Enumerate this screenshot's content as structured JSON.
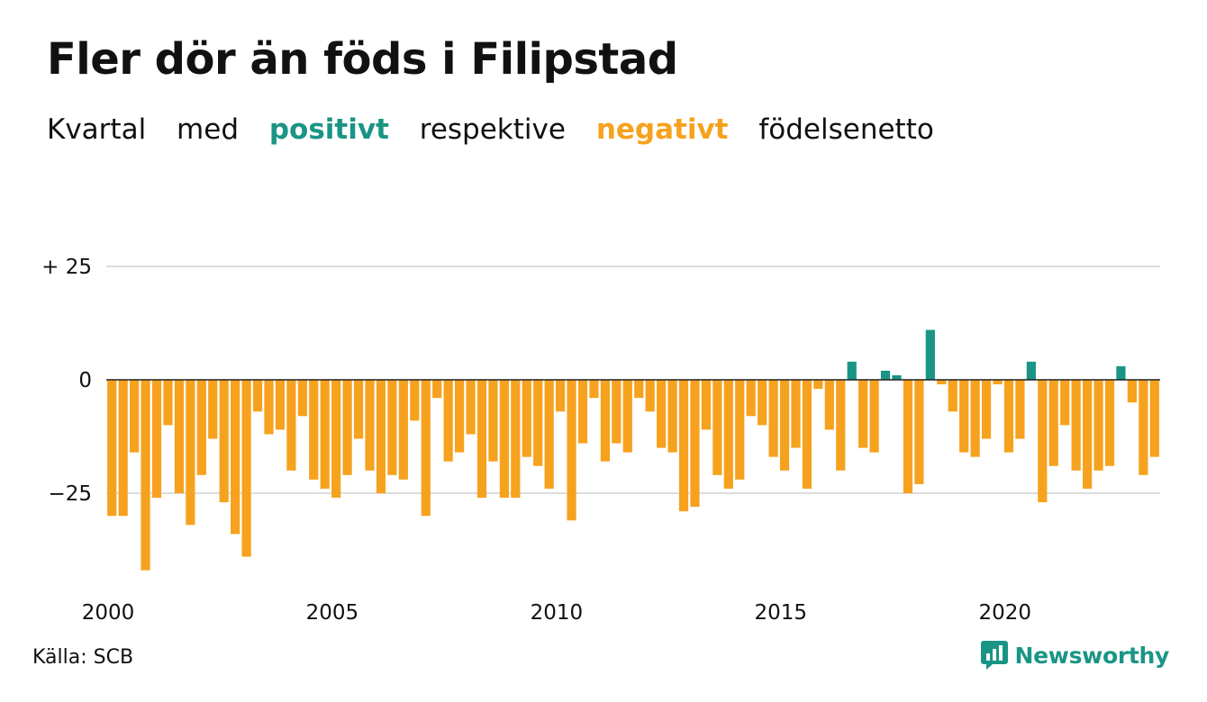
{
  "title": "Fler dör än föds i Filipstad",
  "subtitle": {
    "w1": "Kvartal",
    "w2": "med",
    "positive": "positivt",
    "w3": "respektive",
    "negative": "negativt",
    "w4": "födelsenetto"
  },
  "source": "Källa: SCB",
  "brand": {
    "name": "Newsworthy",
    "icon": "newsworthy-logo-icon"
  },
  "colors": {
    "positive": "#1a9585",
    "negative": "#f6a21e",
    "grid": "#dddddd",
    "zero": "#222222",
    "brand": "#1a9585"
  },
  "chart_data": {
    "type": "bar",
    "title": "Fler dör än föds i Filipstad",
    "xlabel": "",
    "ylabel": "",
    "ylim": [
      -45,
      27
    ],
    "yticks": [
      25,
      0,
      -25
    ],
    "ytick_labels": [
      "+ 25",
      "0",
      "−25"
    ],
    "xticks": [
      "2000",
      "2005",
      "2010",
      "2015",
      "2020"
    ],
    "grid": true,
    "start": "2000 Q1",
    "frequency": "quarter",
    "values": [
      -30,
      -30,
      -16,
      -42,
      -26,
      -10,
      -25,
      -32,
      -21,
      -13,
      -27,
      -34,
      -39,
      -7,
      -12,
      -11,
      -20,
      -8,
      -22,
      -24,
      -26,
      -21,
      -13,
      -20,
      -25,
      -21,
      -22,
      -9,
      -30,
      -4,
      -18,
      -16,
      -12,
      -26,
      -18,
      -26,
      -26,
      -17,
      -19,
      -24,
      -7,
      -31,
      -14,
      -4,
      -18,
      -14,
      -16,
      -4,
      -7,
      -15,
      -16,
      -29,
      -28,
      -11,
      -21,
      -24,
      -22,
      -8,
      -10,
      -17,
      -20,
      -15,
      -24,
      -2,
      -11,
      -20,
      4,
      -15,
      -16,
      2,
      1,
      -25,
      -23,
      11,
      -1,
      -7,
      -16,
      -17,
      -13,
      -1,
      -16,
      -13,
      4,
      -27,
      -19,
      -10,
      -20,
      -24,
      -20,
      -19,
      3,
      -5,
      -21,
      -17
    ]
  }
}
